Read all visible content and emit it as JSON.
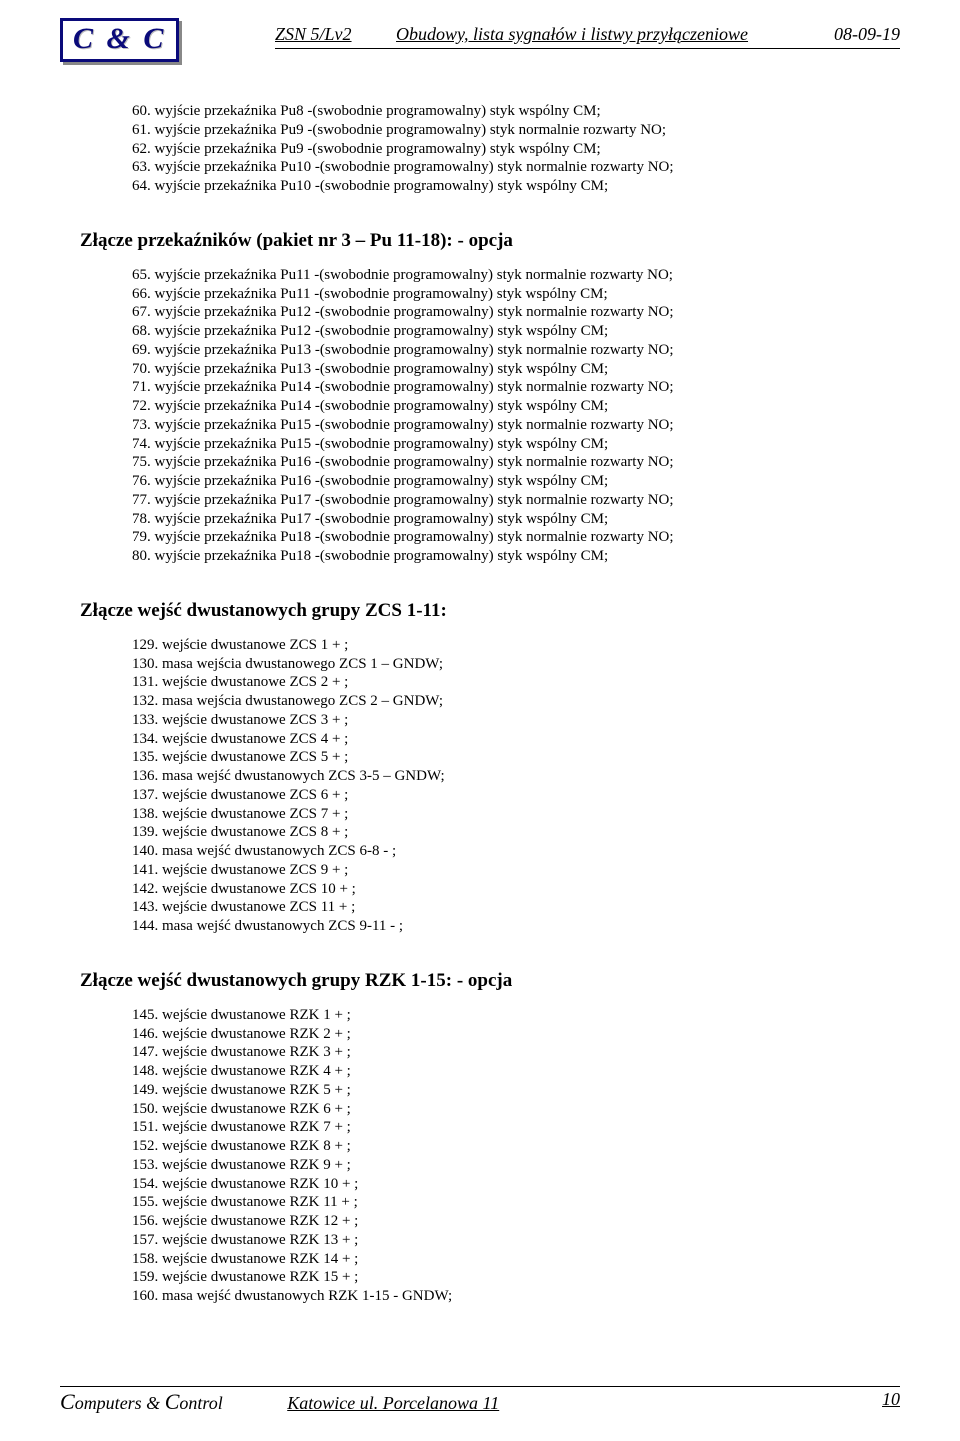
{
  "header": {
    "logo": "C & C",
    "doc_id": "ZSN 5/Lv2",
    "title": "Obudowy, lista sygnałów i listwy przyłączeniowe",
    "date": "08-09-19"
  },
  "sections": [
    {
      "title": null,
      "start": 60,
      "items": [
        "wyjście przekaźnika Pu8  -(swobodnie programowalny) styk wspólny CM;",
        "wyjście przekaźnika Pu9  -(swobodnie programowalny) styk normalnie rozwarty NO;",
        "wyjście przekaźnika Pu9  -(swobodnie programowalny) styk wspólny CM;",
        "wyjście przekaźnika Pu10  -(swobodnie programowalny) styk normalnie rozwarty NO;",
        "wyjście przekaźnika Pu10  -(swobodnie programowalny) styk wspólny CM;"
      ]
    },
    {
      "title": "Złącze przekaźników (pakiet nr 3 – Pu 11-18): - opcja",
      "start": 65,
      "items": [
        "wyjście przekaźnika Pu11 -(swobodnie programowalny) styk normalnie rozwarty NO;",
        "wyjście przekaźnika Pu11 -(swobodnie programowalny) styk wspólny CM;",
        "wyjście przekaźnika Pu12 -(swobodnie programowalny) styk normalnie rozwarty NO;",
        "wyjście przekaźnika Pu12 -(swobodnie programowalny) styk wspólny CM;",
        "wyjście przekaźnika Pu13 -(swobodnie programowalny) styk normalnie rozwarty NO;",
        "wyjście przekaźnika Pu13 -(swobodnie programowalny) styk wspólny CM;",
        "wyjście przekaźnika Pu14 -(swobodnie programowalny) styk normalnie rozwarty NO;",
        "wyjście przekaźnika Pu14 -(swobodnie programowalny) styk wspólny CM;",
        "wyjście przekaźnika Pu15 -(swobodnie programowalny) styk normalnie rozwarty NO;",
        "wyjście przekaźnika Pu15 -(swobodnie programowalny) styk wspólny CM;",
        "wyjście przekaźnika Pu16 -(swobodnie programowalny) styk normalnie rozwarty NO;",
        "wyjście przekaźnika Pu16 -(swobodnie programowalny) styk wspólny CM;",
        "wyjście przekaźnika Pu17  -(swobodnie programowalny) styk normalnie rozwarty NO;",
        "wyjście przekaźnika Pu17  -(swobodnie programowalny) styk wspólny CM;",
        "wyjście przekaźnika Pu18  -(swobodnie programowalny) styk normalnie rozwarty NO;",
        "wyjście przekaźnika Pu18  -(swobodnie programowalny) styk wspólny CM;"
      ]
    },
    {
      "title": "Złącze wejść dwustanowych grupy ZCS 1-11:",
      "start": 129,
      "items": [
        "wejście dwustanowe ZCS 1 + ;",
        "masa wejścia dwustanowego ZCS 1 – GNDW;",
        "wejście dwustanowe ZCS 2 + ;",
        "masa wejścia dwustanowego ZCS 2 – GNDW;",
        "wejście dwustanowe ZCS 3 + ;",
        "wejście dwustanowe ZCS 4 + ;",
        "wejście dwustanowe ZCS 5 + ;",
        "masa wejść dwustanowych ZCS 3-5 – GNDW;",
        "wejście dwustanowe ZCS 6 + ;",
        "wejście dwustanowe ZCS 7 + ;",
        "wejście dwustanowe ZCS 8 + ;",
        "masa wejść dwustanowych ZCS 6-8 - ;",
        "wejście dwustanowe ZCS 9 + ;",
        "wejście dwustanowe ZCS 10 + ;",
        "wejście dwustanowe ZCS 11 + ;",
        "masa wejść dwustanowych ZCS 9-11 - ;"
      ]
    },
    {
      "title": "Złącze wejść dwustanowych grupy RZK 1-15: - opcja",
      "start": 145,
      "items": [
        "wejście dwustanowe RZK 1 + ;",
        "wejście dwustanowe RZK 2 + ;",
        "wejście dwustanowe RZK 3 + ;",
        "wejście dwustanowe RZK 4 + ;",
        "wejście dwustanowe RZK 5 + ;",
        "wejście dwustanowe RZK 6 + ;",
        "wejście dwustanowe RZK 7 + ;",
        "wejście dwustanowe RZK 8 + ;",
        "wejście dwustanowe RZK 9 + ;",
        "wejście dwustanowe RZK 10 + ;",
        "wejście dwustanowe RZK 11 + ;",
        "wejście dwustanowe RZK 12 + ;",
        "wejście dwustanowe RZK 13 + ;",
        "wejście dwustanowe RZK 14 + ;",
        "wejście dwustanowe RZK 15 + ;",
        "masa wejść dwustanowych RZK 1-15 - GNDW;"
      ]
    }
  ],
  "footer": {
    "company": "Computers & Control",
    "address": "Katowice  ul.  Porcelanowa  11",
    "page": "10"
  }
}
